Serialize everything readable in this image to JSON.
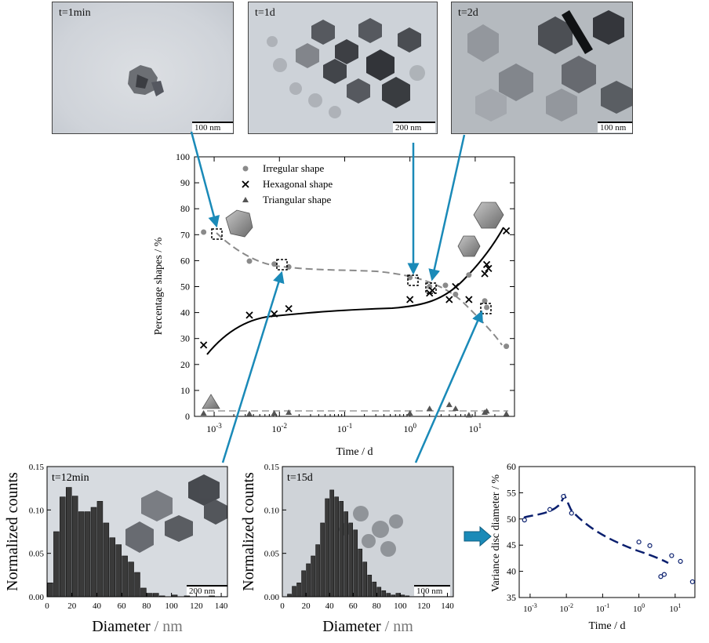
{
  "micrographs": [
    {
      "label": "t=1min",
      "scale": "100 nm"
    },
    {
      "label": "t=1d",
      "scale": "200 nm"
    },
    {
      "label": "t=2d",
      "scale": "100 nm"
    }
  ],
  "colors": {
    "irregular": "#8a8a8a",
    "hexagonal": "#000000",
    "triangular": "#555555",
    "arrow": "#1a8ab8",
    "variance": "#0a1f6e",
    "bars": "#3a3a3a"
  },
  "chart_data": [
    {
      "type": "scatter",
      "xlabel": "Time / d",
      "ylabel": "Percentage shapes / %",
      "xscale": "log",
      "xlim": [
        0.0005,
        40
      ],
      "ylim": [
        0,
        100
      ],
      "yticks": [
        0,
        10,
        20,
        30,
        40,
        50,
        60,
        70,
        80,
        90,
        100
      ],
      "xtick_labels": [
        "10-3",
        "10-2",
        "10-1",
        "100",
        "101"
      ],
      "legend_position": "top-left",
      "series": [
        {
          "name": "Irregular shape",
          "marker": "circle",
          "x": [
            0.00069,
            0.00347,
            0.00833,
            0.0139,
            1,
            2,
            3.5,
            5,
            8,
            14,
            15,
            30
          ],
          "y": [
            71,
            59.8,
            58.7,
            57.6,
            53.5,
            50,
            50.5,
            47,
            54.5,
            44.5,
            42,
            27
          ]
        },
        {
          "name": "Hexagonal shape",
          "marker": "x",
          "x": [
            0.00069,
            0.00347,
            0.00833,
            0.0139,
            1,
            2,
            2.2,
            4,
            5,
            8,
            14,
            15,
            16,
            30
          ],
          "y": [
            27.5,
            39,
            39.5,
            41.5,
            45,
            47.5,
            48.5,
            45,
            50,
            45,
            55,
            58.5,
            57,
            71.5
          ]
        },
        {
          "name": "Triangular shape",
          "marker": "triangle",
          "x": [
            0.00069,
            0.00347,
            0.00833,
            0.0139,
            1,
            2,
            4,
            5,
            8,
            14,
            15,
            30
          ],
          "y": [
            1.2,
            1,
            1.2,
            1.5,
            1.2,
            3,
            4.5,
            3,
            0.5,
            1.5,
            2,
            1
          ]
        }
      ]
    },
    {
      "type": "bar",
      "panel_label": "t=12min",
      "xlabel": "Diameter",
      "xunit": "nm",
      "ylabel": "Normalized counts",
      "xlim": [
        0,
        145
      ],
      "ylim": [
        0,
        0.15
      ],
      "yticks": [
        "0.00",
        "0.05",
        "0.10",
        "0.15"
      ],
      "xticks": [
        0,
        20,
        40,
        60,
        80,
        100,
        120,
        140
      ],
      "scale": "200 nm",
      "bin_width": 5,
      "bin_starts": [
        0,
        5,
        10,
        15,
        20,
        25,
        30,
        35,
        40,
        45,
        50,
        55,
        60,
        65,
        70,
        75,
        80,
        85,
        90,
        95,
        100,
        105,
        110,
        115,
        120,
        125,
        130,
        135
      ],
      "values": [
        0.016,
        0.075,
        0.115,
        0.126,
        0.116,
        0.098,
        0.098,
        0.103,
        0.11,
        0.085,
        0.068,
        0.06,
        0.047,
        0.04,
        0.028,
        0.01,
        0.004,
        0.004,
        0.001,
        0,
        0.002,
        0,
        0.001,
        0,
        0,
        0,
        0.001,
        0
      ]
    },
    {
      "type": "bar",
      "panel_label": "t=15d",
      "xlabel": "Diameter",
      "xunit": "nm",
      "ylabel": "Normalized counts",
      "xlim": [
        0,
        145
      ],
      "ylim": [
        0,
        0.15
      ],
      "yticks": [
        "0.00",
        "0.05",
        "0.10",
        "0.15"
      ],
      "xticks": [
        0,
        20,
        40,
        60,
        80,
        100,
        120,
        140
      ],
      "scale": "100 nm",
      "bin_width": 4,
      "bin_starts": [
        4,
        8,
        12,
        16,
        20,
        24,
        28,
        32,
        36,
        40,
        44,
        48,
        52,
        56,
        60,
        64,
        68,
        72,
        76,
        80,
        84,
        88,
        92,
        96,
        100,
        104
      ],
      "values": [
        0.003,
        0.012,
        0.016,
        0.03,
        0.038,
        0.047,
        0.06,
        0.085,
        0.113,
        0.123,
        0.115,
        0.11,
        0.098,
        0.085,
        0.077,
        0.055,
        0.04,
        0.025,
        0.017,
        0.011,
        0.007,
        0.004,
        0.002,
        0.004,
        0.002,
        0.001
      ]
    },
    {
      "type": "scatter",
      "xlabel": "Time / d",
      "ylabel": "Variance disc diameter / %",
      "xscale": "log",
      "xlim": [
        0.0005,
        35
      ],
      "ylim": [
        35,
        60
      ],
      "yticks": [
        35,
        40,
        45,
        50,
        55,
        60
      ],
      "xtick_labels": [
        "10-3",
        "10-2",
        "10-1",
        "100",
        "101"
      ],
      "series": [
        {
          "name": "",
          "marker": "open-circle",
          "x": [
            0.0007,
            0.0035,
            0.0083,
            0.0139,
            1,
            2,
            4,
            5,
            8,
            14,
            30
          ],
          "y": [
            49.8,
            51.8,
            54.3,
            51.1,
            45.6,
            44.9,
            39,
            39.4,
            43,
            41.9,
            38
          ]
        }
      ]
    }
  ],
  "insets": {
    "irregular_icon": "irregular-shape-icon",
    "hexagon_icon": "hexagon-shape-icon",
    "triangle_icon": "triangle-shape-icon"
  }
}
